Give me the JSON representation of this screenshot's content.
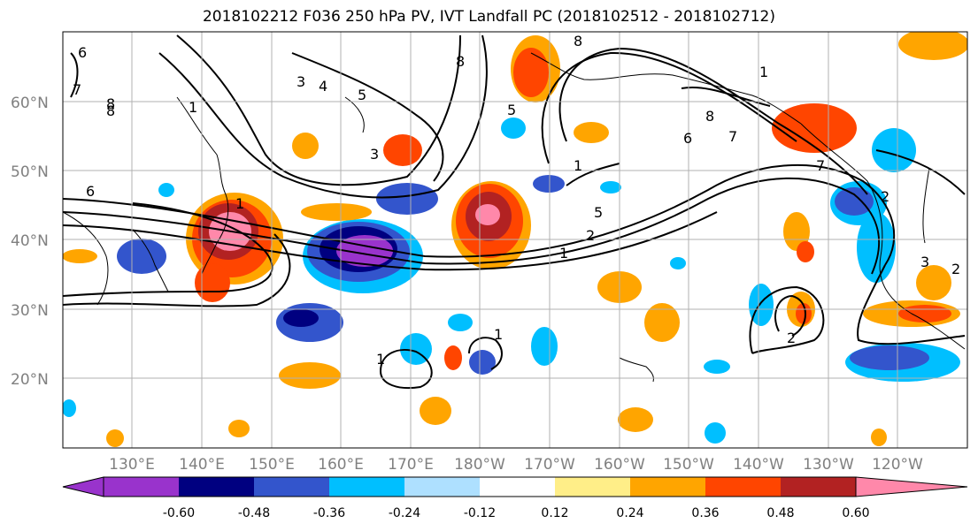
{
  "title": "2018102212 F036 250 hPa PV, IVT Landfall PC (2018102512 - 2018102712)",
  "latitude_labels": [
    "20°N",
    "30°N",
    "40°N",
    "50°N",
    "60°N"
  ],
  "longitude_labels": [
    "130°E",
    "140°E",
    "150°E",
    "160°E",
    "170°E",
    "180°W",
    "170°W",
    "160°W",
    "150°W",
    "140°W",
    "130°W",
    "120°W"
  ],
  "colorbar": {
    "colors": [
      "#9933cc",
      "#000080",
      "#3355cc",
      "#00bfff",
      "#aee0ff",
      "#ffffff",
      "#ffee88",
      "#ffa500",
      "#ff4500",
      "#b22222",
      "#ff88aa"
    ],
    "tick_labels": [
      "-0.60",
      "-0.48",
      "-0.36",
      "-0.24",
      "-0.12",
      "0.12",
      "0.24",
      "0.36",
      "0.48",
      "0.60"
    ]
  },
  "contour_labels": [
    "6",
    "7",
    "8",
    "8",
    "1",
    "3",
    "4",
    "5",
    "3",
    "8",
    "5",
    "1",
    "1",
    "8",
    "7",
    "6",
    "5",
    "2",
    "1",
    "1",
    "2",
    "6",
    "7",
    "8",
    "3",
    "1",
    "2",
    "1",
    "2"
  ]
}
